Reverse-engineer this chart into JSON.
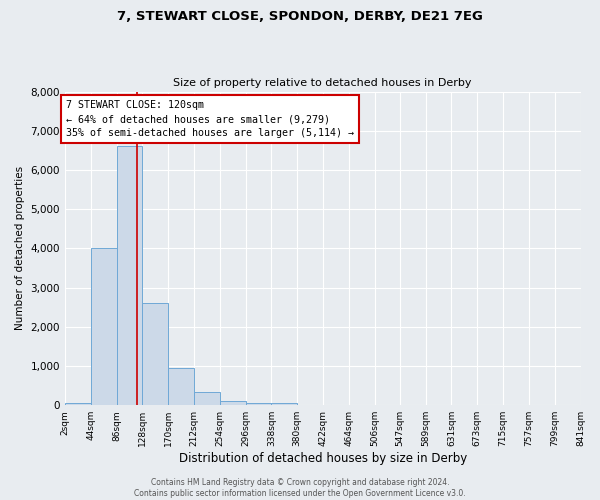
{
  "title1": "7, STEWART CLOSE, SPONDON, DERBY, DE21 7EG",
  "title2": "Size of property relative to detached houses in Derby",
  "xlabel": "Distribution of detached houses by size in Derby",
  "ylabel": "Number of detached properties",
  "bin_edges": [
    2,
    44,
    86,
    128,
    170,
    212,
    254,
    296,
    338,
    380,
    422,
    464,
    506,
    547,
    589,
    631,
    673,
    715,
    757,
    799,
    841
  ],
  "bar_heights": [
    50,
    4000,
    6600,
    2600,
    950,
    330,
    100,
    50,
    50,
    0,
    0,
    0,
    0,
    0,
    0,
    0,
    0,
    0,
    0,
    0
  ],
  "bar_color": "#ccd9e8",
  "bar_edge_color": "#6fa8d6",
  "bg_color": "#e8ecf0",
  "grid_color": "#ffffff",
  "red_line_x": 120,
  "annotation_title": "7 STEWART CLOSE: 120sqm",
  "annotation_line1": "← 64% of detached houses are smaller (9,279)",
  "annotation_line2": "35% of semi-detached houses are larger (5,114) →",
  "annotation_box_color": "#ffffff",
  "annotation_border_color": "#cc0000",
  "ylim": [
    0,
    8000
  ],
  "yticks": [
    0,
    1000,
    2000,
    3000,
    4000,
    5000,
    6000,
    7000,
    8000
  ],
  "footer1": "Contains HM Land Registry data © Crown copyright and database right 2024.",
  "footer2": "Contains public sector information licensed under the Open Government Licence v3.0."
}
